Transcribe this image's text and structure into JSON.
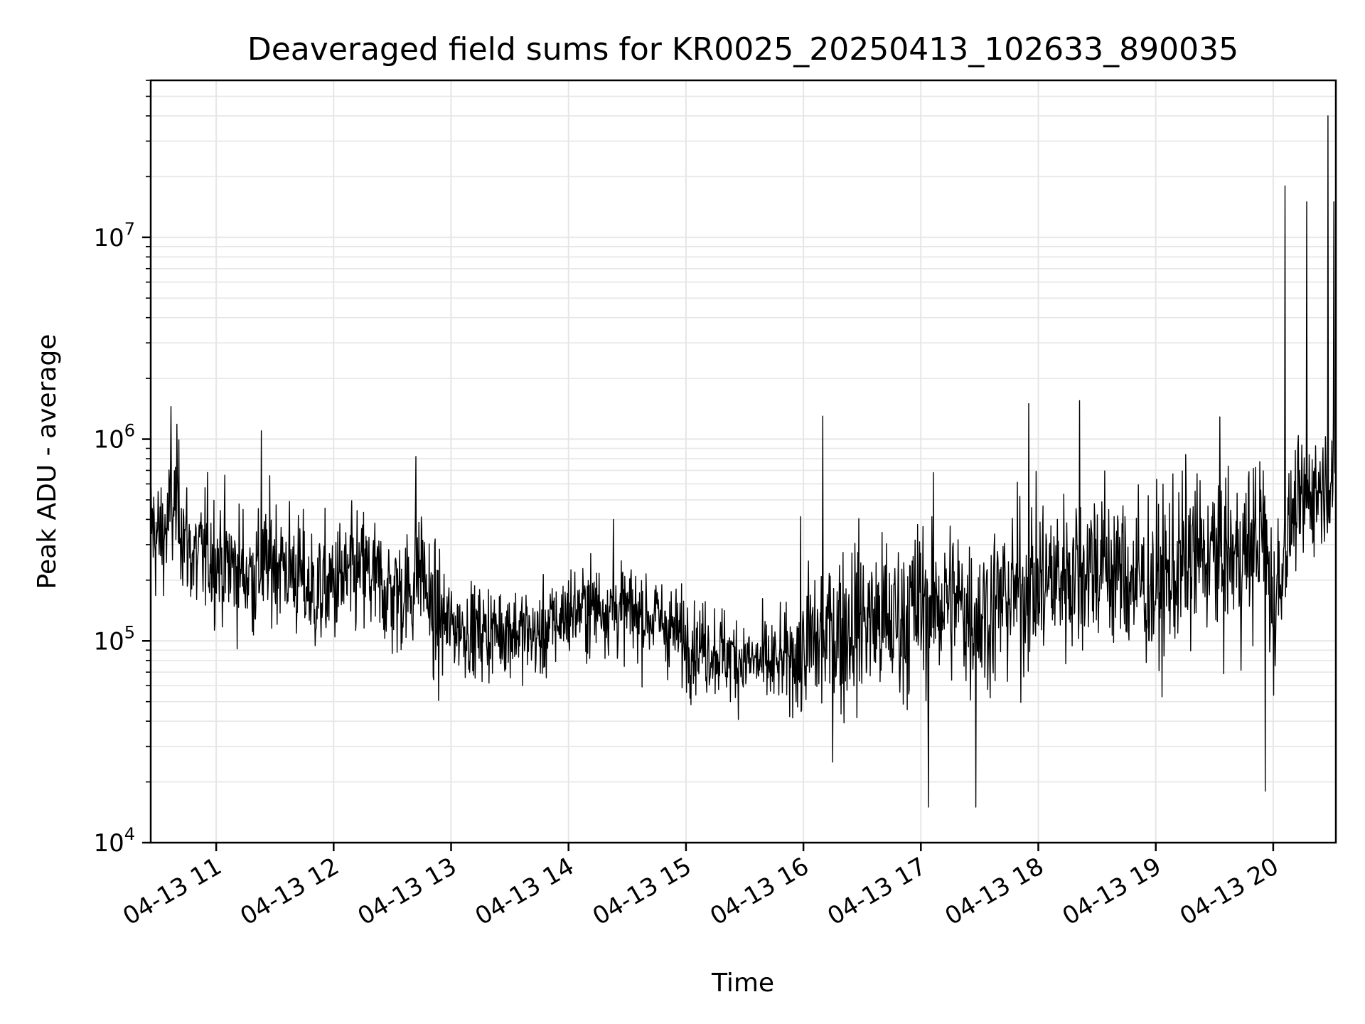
{
  "chart_data": {
    "type": "line",
    "title": "Deaveraged field sums for KR0025_20250413_102633_890035",
    "xlabel": "Time",
    "ylabel": "Peak ADU - average",
    "x_axis": {
      "kind": "date",
      "range": [
        "2025-04-13 10:26:33",
        "2025-04-13 20:32:00"
      ],
      "ticks": [
        {
          "value": "2025-04-13 11:00",
          "label": "04-13 11"
        },
        {
          "value": "2025-04-13 12:00",
          "label": "04-13 12"
        },
        {
          "value": "2025-04-13 13:00",
          "label": "04-13 13"
        },
        {
          "value": "2025-04-13 14:00",
          "label": "04-13 14"
        },
        {
          "value": "2025-04-13 15:00",
          "label": "04-13 15"
        },
        {
          "value": "2025-04-13 16:00",
          "label": "04-13 16"
        },
        {
          "value": "2025-04-13 17:00",
          "label": "04-13 17"
        },
        {
          "value": "2025-04-13 18:00",
          "label": "04-13 18"
        },
        {
          "value": "2025-04-13 19:00",
          "label": "04-13 19"
        },
        {
          "value": "2025-04-13 20:00",
          "label": "04-13 20"
        }
      ]
    },
    "y_axis": {
      "scale": "log",
      "range": [
        10000,
        60000000
      ],
      "ticks": [
        {
          "value": 10000,
          "base": "10",
          "exp": "4"
        },
        {
          "value": 100000,
          "base": "10",
          "exp": "5"
        },
        {
          "value": 1000000,
          "base": "10",
          "exp": "6"
        },
        {
          "value": 10000000,
          "base": "10",
          "exp": "7"
        }
      ]
    },
    "grid": true,
    "line_color": "#000000",
    "grid_color": "#e6e6e6",
    "series": [
      {
        "x": [
          "2025-04-13 10:26",
          "2025-04-13 10:30",
          "2025-04-13 10:35",
          "2025-04-13 10:40",
          "2025-04-13 10:45",
          "2025-04-13 10:50",
          "2025-04-13 10:55",
          "2025-04-13 11:00",
          "2025-04-13 11:10",
          "2025-04-13 11:20",
          "2025-04-13 11:30",
          "2025-04-13 11:40",
          "2025-04-13 11:50",
          "2025-04-13 12:00",
          "2025-04-13 12:15",
          "2025-04-13 12:30",
          "2025-04-13 12:40",
          "2025-04-13 12:45",
          "2025-04-13 12:50",
          "2025-04-13 13:00",
          "2025-04-13 13:15",
          "2025-04-13 13:30",
          "2025-04-13 13:45",
          "2025-04-13 14:00",
          "2025-04-13 14:15",
          "2025-04-13 14:30",
          "2025-04-13 14:45",
          "2025-04-13 15:00",
          "2025-04-13 15:15",
          "2025-04-13 15:30",
          "2025-04-13 15:45",
          "2025-04-13 16:00",
          "2025-04-13 16:15",
          "2025-04-13 16:30",
          "2025-04-13 16:45",
          "2025-04-13 17:00",
          "2025-04-13 17:15",
          "2025-04-13 17:30",
          "2025-04-13 17:45",
          "2025-04-13 18:00",
          "2025-04-13 18:15",
          "2025-04-13 18:30",
          "2025-04-13 18:45",
          "2025-04-13 19:00",
          "2025-04-13 19:15",
          "2025-04-13 19:30",
          "2025-04-13 19:45",
          "2025-04-13 19:55",
          "2025-04-13 20:00",
          "2025-04-13 20:10",
          "2025-04-13 20:20",
          "2025-04-13 20:30"
        ],
        "y": [
          400000,
          320000,
          360000,
          500000,
          300000,
          250000,
          280000,
          260000,
          230000,
          210000,
          260000,
          220000,
          170000,
          190000,
          220000,
          170000,
          180000,
          250000,
          130000,
          120000,
          110000,
          115000,
          105000,
          140000,
          150000,
          140000,
          130000,
          100000,
          90000,
          80000,
          75000,
          90000,
          110000,
          130000,
          120000,
          150000,
          160000,
          130000,
          170000,
          190000,
          220000,
          250000,
          210000,
          180000,
          250000,
          270000,
          260000,
          350000,
          140000,
          420000,
          550000,
          650000
        ]
      }
    ],
    "spikes": [
      {
        "x": "2025-04-13 20:06",
        "y": 18000000
      },
      {
        "x": "2025-04-13 20:17",
        "y": 15000000
      },
      {
        "x": "2025-04-13 20:28",
        "y": 40000000
      },
      {
        "x": "2025-04-13 20:31",
        "y": 15000000
      },
      {
        "x": "2025-04-13 19:56",
        "y": 18000
      },
      {
        "x": "2025-04-13 16:10",
        "y": 1300000
      },
      {
        "x": "2025-04-13 17:04",
        "y": 15000
      },
      {
        "x": "2025-04-13 17:28",
        "y": 15000
      },
      {
        "x": "2025-04-13 17:55",
        "y": 1500000
      },
      {
        "x": "2025-04-13 18:21",
        "y": 1550000
      },
      {
        "x": "2025-04-13 14:23",
        "y": 400000
      },
      {
        "x": "2025-04-13 12:42",
        "y": 820000
      },
      {
        "x": "2025-04-13 11:23",
        "y": 1100000
      },
      {
        "x": "2025-04-13 10:37",
        "y": 1450000
      }
    ]
  }
}
